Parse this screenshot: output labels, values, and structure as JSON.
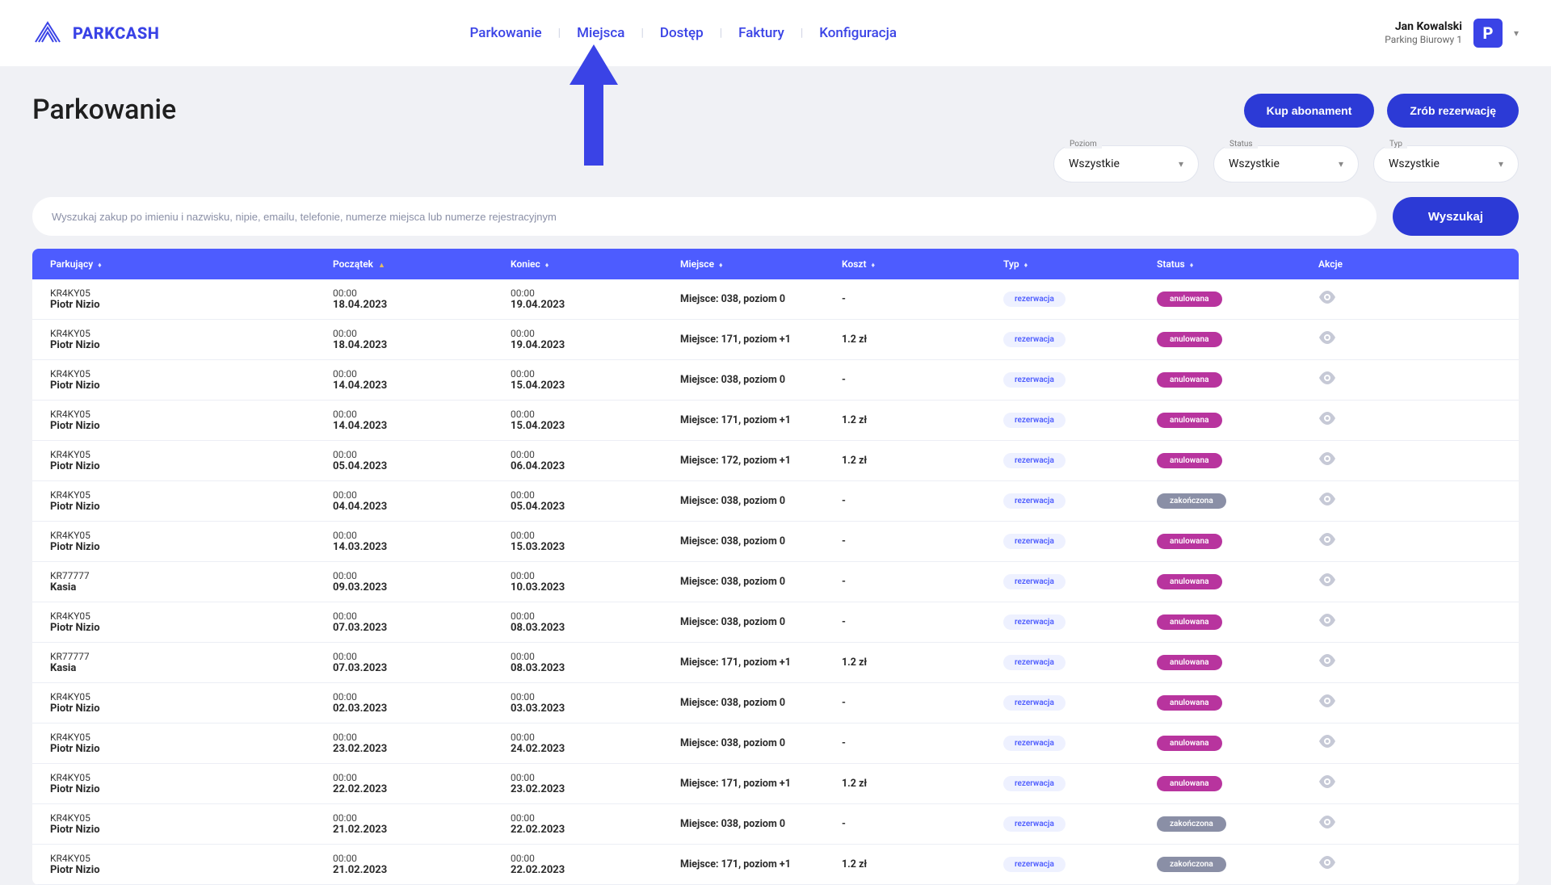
{
  "brand": "PARKCASH",
  "nav": [
    "Parkowanie",
    "Miejsca",
    "Dostęp",
    "Faktury",
    "Konfiguracja"
  ],
  "user": {
    "name": "Jan Kowalski",
    "sub": "Parking Biurowy 1",
    "badge": "P"
  },
  "pageTitle": "Parkowanie",
  "buttons": {
    "abon": "Kup abonament",
    "reserve": "Zrób rezerwację",
    "search": "Wyszukaj"
  },
  "filters": {
    "level": {
      "label": "Poziom",
      "value": "Wszystkie"
    },
    "status": {
      "label": "Status",
      "value": "Wszystkie"
    },
    "type": {
      "label": "Typ",
      "value": "Wszystkie"
    }
  },
  "searchPlaceholder": "Wyszukaj zakup po imieniu i nazwisku, nipie, emailu, telefonie, numerze miejsca lub numerze rejestracyjnym",
  "columns": {
    "parker": "Parkujący",
    "start": "Początek",
    "end": "Koniec",
    "place": "Miejsce",
    "cost": "Koszt",
    "type": "Typ",
    "status": "Status",
    "action": "Akcje"
  },
  "typeLabel": "rezerwacja",
  "statusLabels": {
    "anulowana": "anulowana",
    "zakonczona": "zakończona"
  },
  "rows": [
    {
      "plate": "KR4KY05",
      "name": "Piotr Nizio",
      "sh": "00:00",
      "sd": "18.04.2023",
      "eh": "00:00",
      "ed": "19.04.2023",
      "place": "Miejsce: 038, poziom 0",
      "cost": "-",
      "status": "anulowana"
    },
    {
      "plate": "KR4KY05",
      "name": "Piotr Nizio",
      "sh": "00:00",
      "sd": "18.04.2023",
      "eh": "00:00",
      "ed": "19.04.2023",
      "place": "Miejsce: 171, poziom +1",
      "cost": "1.2 zł",
      "status": "anulowana"
    },
    {
      "plate": "KR4KY05",
      "name": "Piotr Nizio",
      "sh": "00:00",
      "sd": "14.04.2023",
      "eh": "00:00",
      "ed": "15.04.2023",
      "place": "Miejsce: 038, poziom 0",
      "cost": "-",
      "status": "anulowana"
    },
    {
      "plate": "KR4KY05",
      "name": "Piotr Nizio",
      "sh": "00:00",
      "sd": "14.04.2023",
      "eh": "00:00",
      "ed": "15.04.2023",
      "place": "Miejsce: 171, poziom +1",
      "cost": "1.2 zł",
      "status": "anulowana"
    },
    {
      "plate": "KR4KY05",
      "name": "Piotr Nizio",
      "sh": "00:00",
      "sd": "05.04.2023",
      "eh": "00:00",
      "ed": "06.04.2023",
      "place": "Miejsce: 172, poziom +1",
      "cost": "1.2 zł",
      "status": "anulowana"
    },
    {
      "plate": "KR4KY05",
      "name": "Piotr Nizio",
      "sh": "00:00",
      "sd": "04.04.2023",
      "eh": "00:00",
      "ed": "05.04.2023",
      "place": "Miejsce: 038, poziom 0",
      "cost": "-",
      "status": "zakonczona"
    },
    {
      "plate": "KR4KY05",
      "name": "Piotr Nizio",
      "sh": "00:00",
      "sd": "14.03.2023",
      "eh": "00:00",
      "ed": "15.03.2023",
      "place": "Miejsce: 038, poziom 0",
      "cost": "-",
      "status": "anulowana"
    },
    {
      "plate": "KR77777",
      "name": "Kasia",
      "sh": "00:00",
      "sd": "09.03.2023",
      "eh": "00:00",
      "ed": "10.03.2023",
      "place": "Miejsce: 038, poziom 0",
      "cost": "-",
      "status": "anulowana"
    },
    {
      "plate": "KR4KY05",
      "name": "Piotr Nizio",
      "sh": "00:00",
      "sd": "07.03.2023",
      "eh": "00:00",
      "ed": "08.03.2023",
      "place": "Miejsce: 038, poziom 0",
      "cost": "-",
      "status": "anulowana"
    },
    {
      "plate": "KR77777",
      "name": "Kasia",
      "sh": "00:00",
      "sd": "07.03.2023",
      "eh": "00:00",
      "ed": "08.03.2023",
      "place": "Miejsce: 171, poziom +1",
      "cost": "1.2 zł",
      "status": "anulowana"
    },
    {
      "plate": "KR4KY05",
      "name": "Piotr Nizio",
      "sh": "00:00",
      "sd": "02.03.2023",
      "eh": "00:00",
      "ed": "03.03.2023",
      "place": "Miejsce: 038, poziom 0",
      "cost": "-",
      "status": "anulowana"
    },
    {
      "plate": "KR4KY05",
      "name": "Piotr Nizio",
      "sh": "00:00",
      "sd": "23.02.2023",
      "eh": "00:00",
      "ed": "24.02.2023",
      "place": "Miejsce: 038, poziom 0",
      "cost": "-",
      "status": "anulowana"
    },
    {
      "plate": "KR4KY05",
      "name": "Piotr Nizio",
      "sh": "00:00",
      "sd": "22.02.2023",
      "eh": "00:00",
      "ed": "23.02.2023",
      "place": "Miejsce: 171, poziom +1",
      "cost": "1.2 zł",
      "status": "anulowana"
    },
    {
      "plate": "KR4KY05",
      "name": "Piotr Nizio",
      "sh": "00:00",
      "sd": "21.02.2023",
      "eh": "00:00",
      "ed": "22.02.2023",
      "place": "Miejsce: 038, poziom 0",
      "cost": "-",
      "status": "zakonczona"
    },
    {
      "plate": "KR4KY05",
      "name": "Piotr Nizio",
      "sh": "00:00",
      "sd": "21.02.2023",
      "eh": "00:00",
      "ed": "22.02.2023",
      "place": "Miejsce: 171, poziom +1",
      "cost": "1.2 zł",
      "status": "zakonczona"
    }
  ]
}
